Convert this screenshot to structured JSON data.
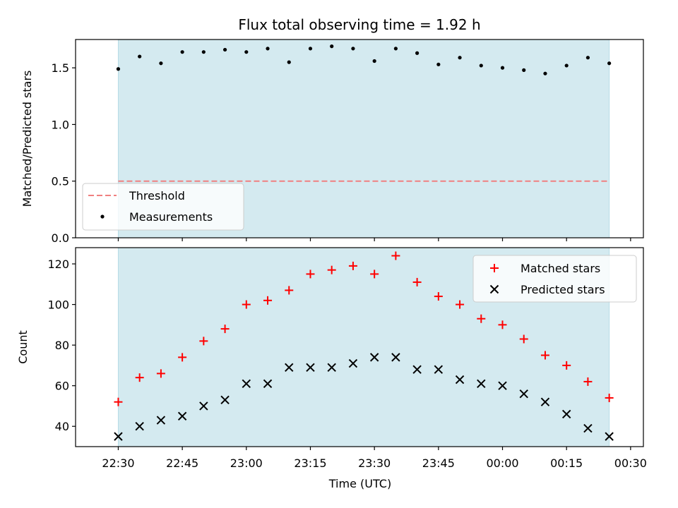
{
  "figure": {
    "title": "Flux total observing time = 1.92 h",
    "shade_color": "#d4eaf0",
    "threshold_color": "#f08080",
    "matched_color": "#ff0000",
    "predicted_color": "#000000"
  },
  "chart_data": [
    {
      "type": "scatter",
      "ylabel": "Matched/Predicted stars",
      "xlabel": "",
      "ylim": [
        0,
        1.75
      ],
      "yticks": [
        "0.0",
        "0.5",
        "1.0",
        "1.5"
      ],
      "ytick_values": [
        0,
        0.5,
        1.0,
        1.5
      ],
      "x_range": [
        "22:20",
        "00:33"
      ],
      "shaded_interval": [
        "22:30",
        "00:25"
      ],
      "threshold": {
        "name": "Threshold",
        "value": 0.5,
        "style": "dashed"
      },
      "legend": {
        "placement": "lower-left",
        "entries": [
          "Threshold",
          "Measurements"
        ]
      },
      "series": [
        {
          "name": "Measurements",
          "marker": "dot",
          "x": [
            "22:30",
            "22:35",
            "22:40",
            "22:45",
            "22:50",
            "22:55",
            "23:00",
            "23:05",
            "23:10",
            "23:15",
            "23:20",
            "23:25",
            "23:30",
            "23:35",
            "23:40",
            "23:45",
            "23:50",
            "23:55",
            "00:00",
            "00:05",
            "00:10",
            "00:15",
            "00:20",
            "00:25"
          ],
          "values": [
            1.49,
            1.6,
            1.54,
            1.64,
            1.64,
            1.66,
            1.64,
            1.67,
            1.55,
            1.67,
            1.69,
            1.67,
            1.56,
            1.67,
            1.63,
            1.53,
            1.59,
            1.52,
            1.5,
            1.48,
            1.45,
            1.52,
            1.59,
            1.54
          ]
        }
      ]
    },
    {
      "type": "scatter",
      "ylabel": "Count",
      "xlabel": "Time (UTC)",
      "ylim": [
        30,
        128
      ],
      "yticks": [
        "40",
        "60",
        "80",
        "100",
        "120"
      ],
      "ytick_values": [
        40,
        60,
        80,
        100,
        120
      ],
      "x_range": [
        "22:20",
        "00:33"
      ],
      "xticks": [
        "22:30",
        "22:45",
        "23:00",
        "23:15",
        "23:30",
        "23:45",
        "00:00",
        "00:15",
        "00:30"
      ],
      "shaded_interval": [
        "22:30",
        "00:25"
      ],
      "legend": {
        "placement": "top-right",
        "entries": [
          "Matched stars",
          "Predicted stars"
        ]
      },
      "series": [
        {
          "name": "Matched stars",
          "marker": "plus",
          "x": [
            "22:30",
            "22:35",
            "22:40",
            "22:45",
            "22:50",
            "22:55",
            "23:00",
            "23:05",
            "23:10",
            "23:15",
            "23:20",
            "23:25",
            "23:30",
            "23:35",
            "23:40",
            "23:45",
            "23:50",
            "23:55",
            "00:00",
            "00:05",
            "00:10",
            "00:15",
            "00:20",
            "00:25"
          ],
          "values": [
            52,
            64,
            66,
            74,
            82,
            88,
            100,
            102,
            107,
            115,
            117,
            119,
            115,
            124,
            111,
            104,
            100,
            93,
            90,
            83,
            75,
            70,
            62,
            54
          ]
        },
        {
          "name": "Predicted stars",
          "marker": "x",
          "x": [
            "22:30",
            "22:35",
            "22:40",
            "22:45",
            "22:50",
            "22:55",
            "23:00",
            "23:05",
            "23:10",
            "23:15",
            "23:20",
            "23:25",
            "23:30",
            "23:35",
            "23:40",
            "23:45",
            "23:50",
            "23:55",
            "00:00",
            "00:05",
            "00:10",
            "00:15",
            "00:20",
            "00:25"
          ],
          "values": [
            35,
            40,
            43,
            45,
            50,
            53,
            61,
            61,
            69,
            69,
            69,
            71,
            74,
            74,
            68,
            68,
            63,
            61,
            60,
            56,
            52,
            46,
            39,
            35
          ]
        }
      ]
    }
  ]
}
